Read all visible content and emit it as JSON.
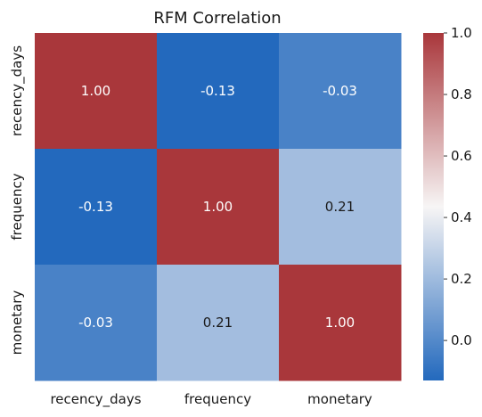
{
  "chart_data": {
    "type": "heatmap",
    "title": "RFM Correlation",
    "x_labels": [
      "recency_days",
      "frequency",
      "monetary"
    ],
    "y_labels": [
      "recency_days",
      "frequency",
      "monetary"
    ],
    "values": [
      [
        1.0,
        -0.13,
        -0.03
      ],
      [
        -0.13,
        1.0,
        0.21
      ],
      [
        -0.03,
        0.21,
        1.0
      ]
    ],
    "cell_labels": [
      [
        "1.00",
        "-0.13",
        "-0.03"
      ],
      [
        "-0.13",
        "1.00",
        "0.21"
      ],
      [
        "-0.03",
        "0.21",
        "1.00"
      ]
    ],
    "colorbar": {
      "vmin": -0.13,
      "vmax": 1.0,
      "ticks": [
        0.0,
        0.2,
        0.4,
        0.6,
        0.8,
        1.0
      ],
      "tick_labels": [
        "0.0",
        "0.2",
        "0.4",
        "0.6",
        "0.8",
        "1.0"
      ],
      "colormap": "vlag",
      "low_color": "#2369bd",
      "mid_color": "#f7f5f5",
      "high_color": "#a9373b"
    }
  }
}
